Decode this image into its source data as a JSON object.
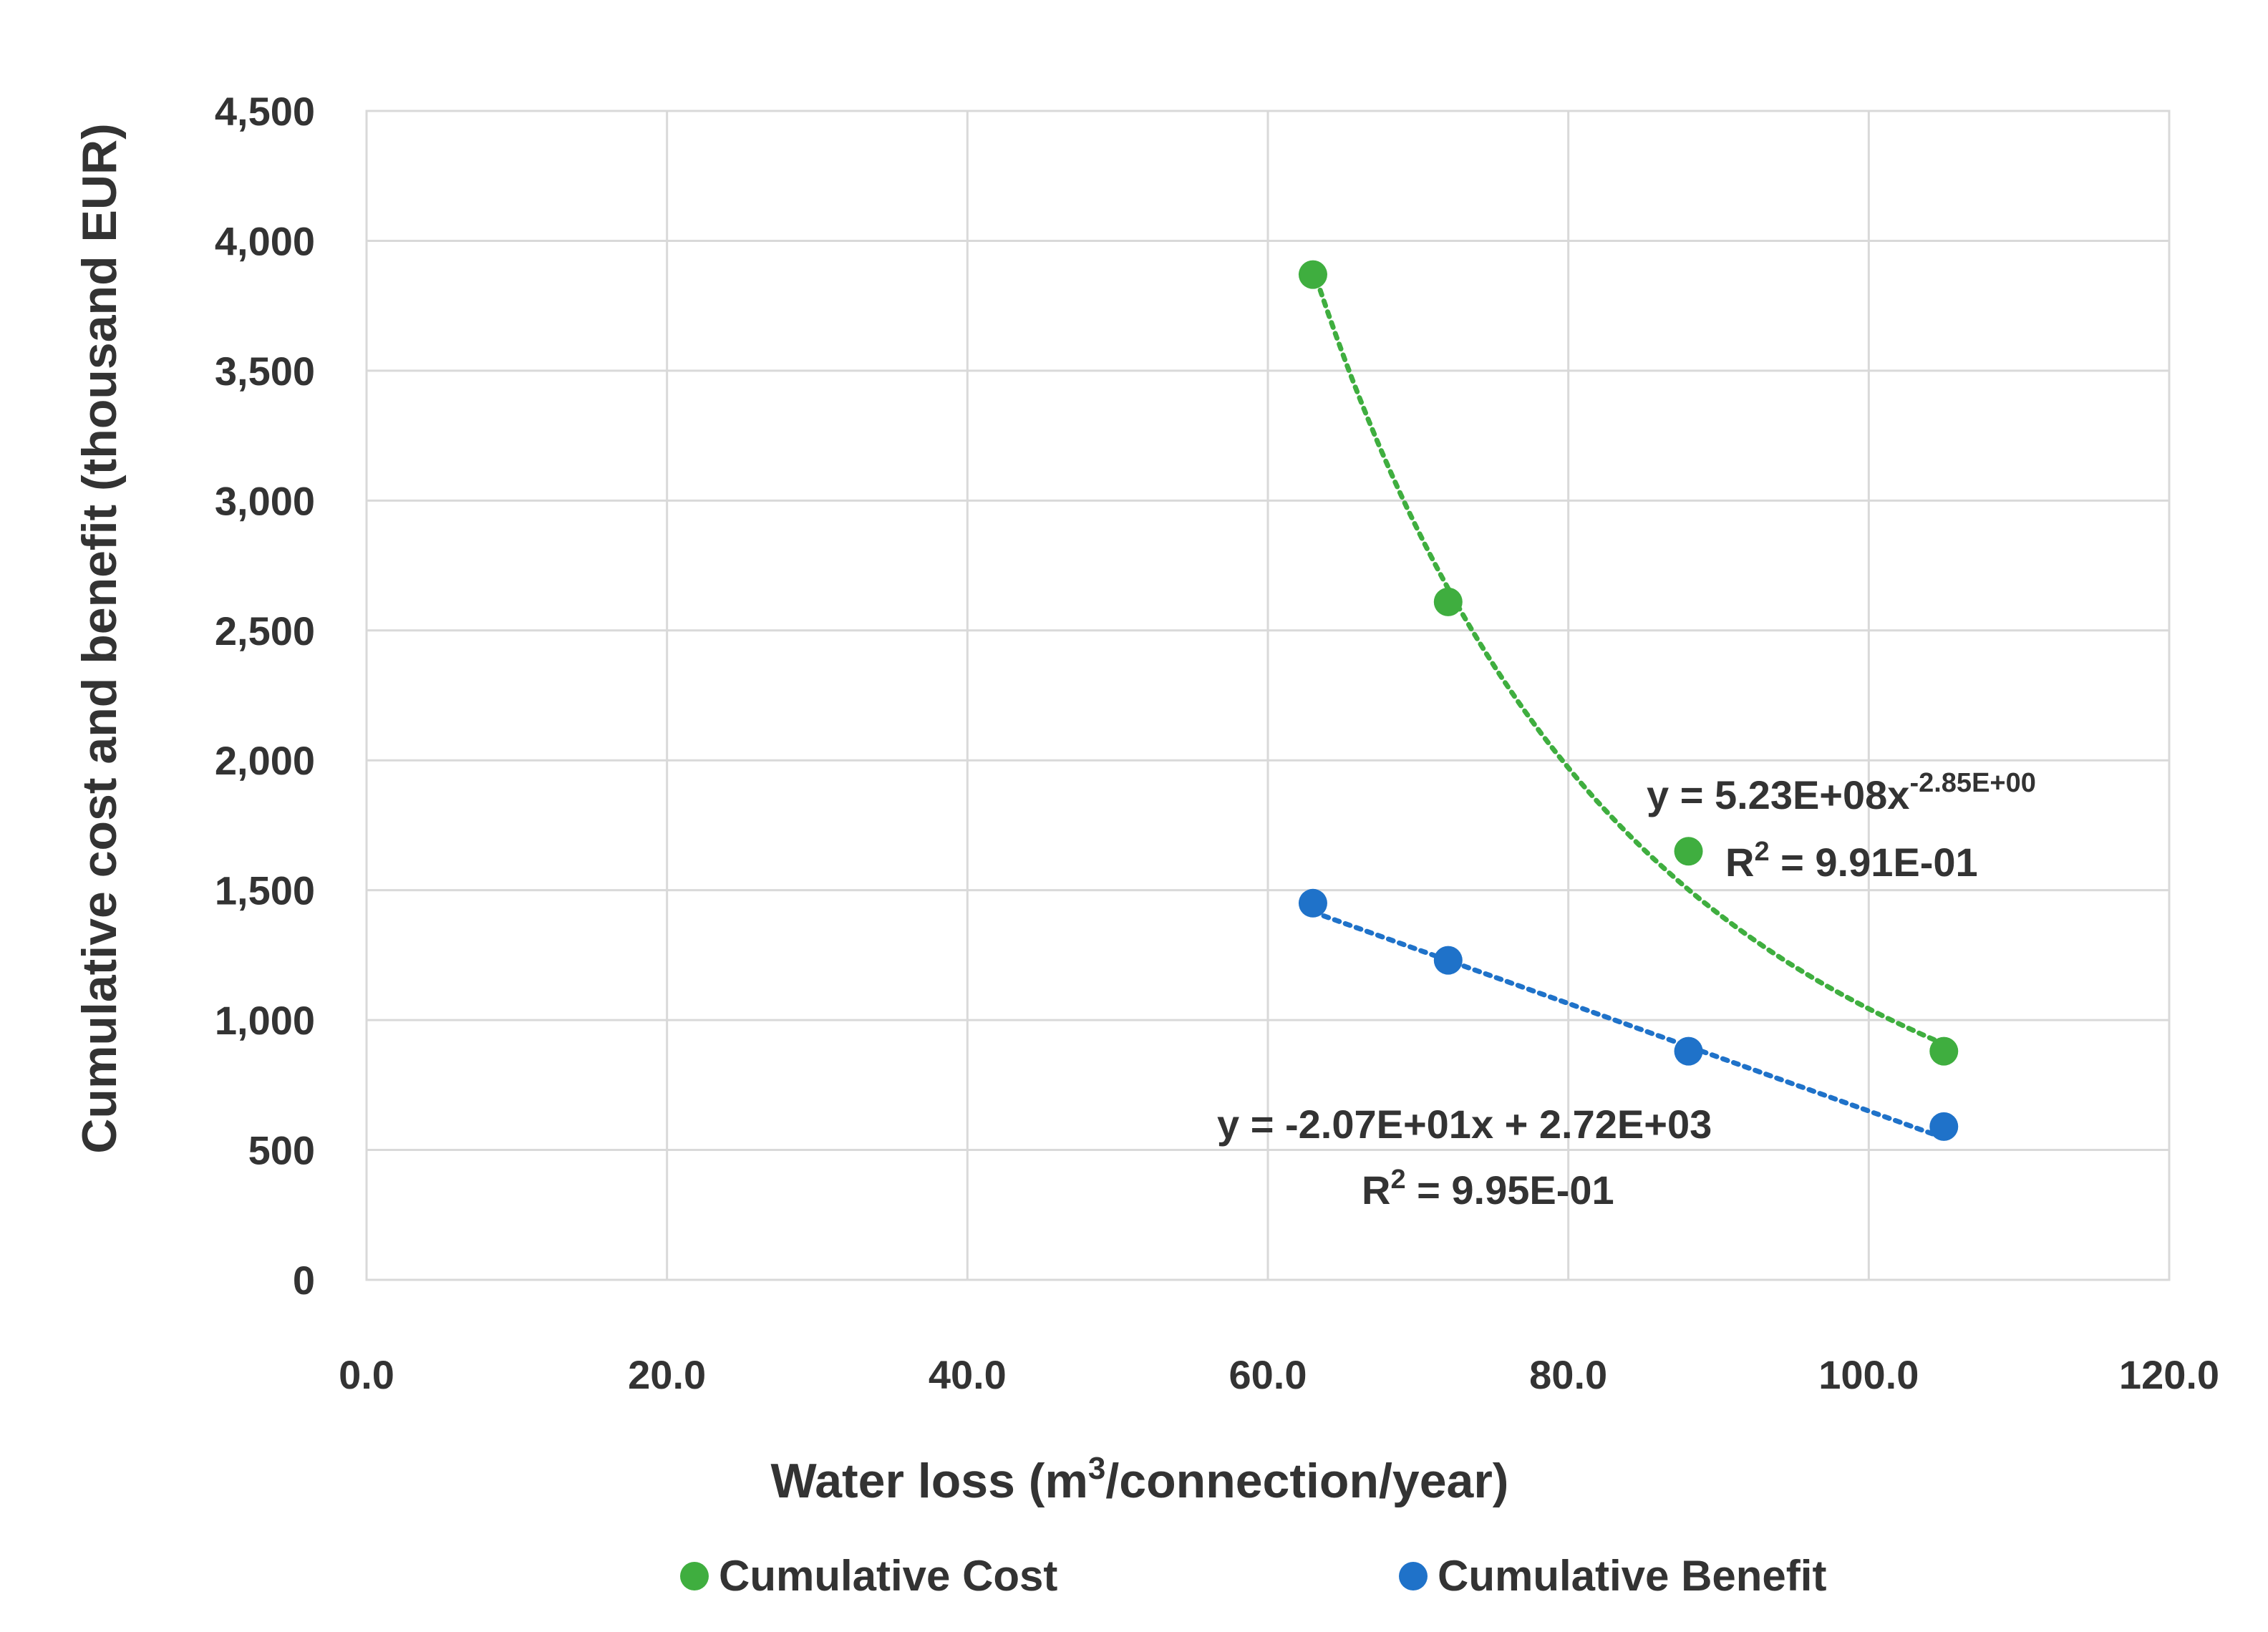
{
  "chart_data": {
    "type": "scatter",
    "title": "",
    "xlabel": "Water loss (m³/connection/year)",
    "xlabel_parts": {
      "before": "Water loss (m",
      "sup": "3",
      "after": "/connection/year)"
    },
    "ylabel": "Cumulative cost and benefit (thousand EUR)",
    "xlim": [
      0,
      120
    ],
    "ylim": [
      0,
      4500
    ],
    "x_ticks": [
      "0.0",
      "20.0",
      "40.0",
      "60.0",
      "80.0",
      "100.0",
      "120.0"
    ],
    "y_ticks": [
      "0",
      "500",
      "1,000",
      "1,500",
      "2,000",
      "2,500",
      "3,000",
      "3,500",
      "4,000",
      "4,500"
    ],
    "grid": true,
    "legend_position": "bottom",
    "series": [
      {
        "name": "Cumulative Cost",
        "color": "#3fae3f",
        "x": [
          63,
          72,
          88,
          105
        ],
        "y": [
          3870,
          2610,
          1650,
          880
        ],
        "trendline": {
          "type": "power",
          "a": 523000000,
          "b": -2.85,
          "style": "dotted"
        },
        "equation": {
          "main": "y = 5.23E+08x",
          "sup": "-2.85E+00",
          "r2_label": "R",
          "r2_sup": "2",
          "r2_value": " = 9.91E-01"
        }
      },
      {
        "name": "Cumulative Benefit",
        "color": "#1f72c9",
        "x": [
          63,
          72,
          88,
          105
        ],
        "y": [
          1450,
          1230,
          880,
          590
        ],
        "trendline": {
          "type": "linear",
          "slope": -20.7,
          "intercept": 2720,
          "style": "dotted"
        },
        "equation": {
          "main": "y = -2.07E+01x + 2.72E+03",
          "r2_label": "R",
          "r2_sup": "2",
          "r2_value": " = 9.95E-01"
        }
      }
    ]
  }
}
